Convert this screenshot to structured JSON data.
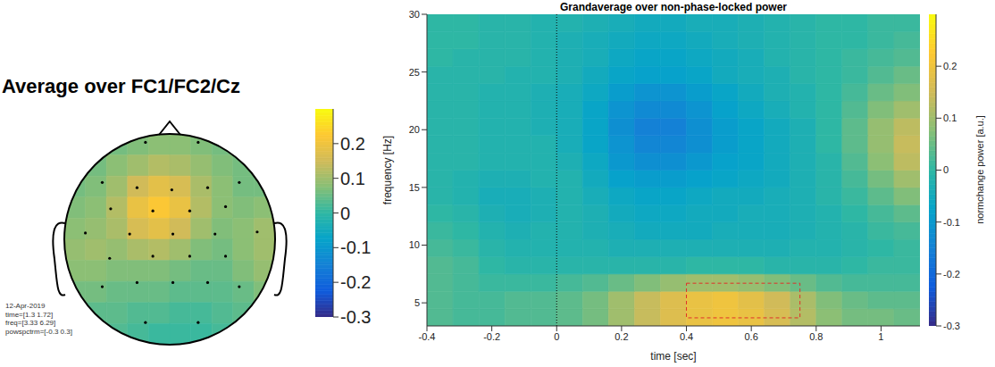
{
  "chart_data": [
    {
      "type": "topoplot",
      "title": "Average over FC1/FC2/Cz",
      "annotations": [
        "12-Apr-2019",
        "time=[1.3 1.72]",
        "freq=[3.33 6.29]",
        "powspctrm=[-0.3 0.3]"
      ],
      "tick_labels": false,
      "xlim": [
        -1,
        1
      ],
      "ylim": [
        -1,
        1
      ],
      "x": [
        -0.9,
        -0.7,
        -0.5,
        -0.3,
        -0.1,
        0.1,
        0.3,
        0.5,
        0.7,
        0.9
      ],
      "y": [
        0.9,
        0.7,
        0.5,
        0.3,
        0.1,
        -0.1,
        -0.3,
        -0.5,
        -0.7,
        -0.9
      ],
      "cells": [
        [
          0.05,
          0.05,
          0.06,
          0.07,
          0.08,
          0.08,
          0.07,
          0.06,
          0.05,
          0.05
        ],
        [
          0.05,
          0.06,
          0.08,
          0.1,
          0.12,
          0.11,
          0.09,
          0.07,
          0.06,
          0.05
        ],
        [
          0.06,
          0.07,
          0.1,
          0.15,
          0.18,
          0.16,
          0.11,
          0.08,
          0.06,
          0.06
        ],
        [
          0.07,
          0.08,
          0.12,
          0.19,
          0.22,
          0.19,
          0.12,
          0.08,
          0.07,
          0.08
        ],
        [
          0.08,
          0.09,
          0.11,
          0.16,
          0.18,
          0.15,
          0.1,
          0.07,
          0.08,
          0.1
        ],
        [
          0.09,
          0.1,
          0.09,
          0.11,
          0.12,
          0.1,
          0.07,
          0.06,
          0.08,
          0.1
        ],
        [
          0.08,
          0.08,
          0.07,
          0.07,
          0.07,
          0.06,
          0.05,
          0.05,
          0.07,
          0.09
        ],
        [
          0.06,
          0.06,
          0.05,
          0.05,
          0.05,
          0.04,
          0.04,
          0.04,
          0.05,
          0.07
        ],
        [
          0.05,
          0.04,
          0.04,
          0.03,
          0.03,
          0.02,
          0.02,
          0.03,
          0.04,
          0.05
        ],
        [
          0.04,
          0.03,
          0.03,
          0.02,
          0.01,
          0.01,
          0.01,
          0.02,
          0.03,
          0.04
        ]
      ],
      "electrodes": {
        "x": [
          -0.23,
          0.27,
          -0.64,
          -0.31,
          0.02,
          0.36,
          0.66,
          -0.56,
          -0.16,
          0.19,
          0.53,
          -0.8,
          -0.38,
          0.03,
          0.43,
          0.83,
          -0.57,
          -0.16,
          0.19,
          0.53,
          -0.64,
          -0.31,
          0.03,
          0.36,
          0.66,
          -0.23,
          0.27
        ],
        "y": [
          0.92,
          0.92,
          0.54,
          0.49,
          0.47,
          0.49,
          0.54,
          0.29,
          0.27,
          0.27,
          0.31,
          0.06,
          0.05,
          0.05,
          0.05,
          0.07,
          -0.18,
          -0.16,
          -0.16,
          -0.16,
          -0.45,
          -0.41,
          -0.41,
          -0.41,
          -0.45,
          -0.79,
          -0.79
        ]
      },
      "colorbar": {
        "lim": [
          -0.3,
          0.3
        ],
        "ticks": [
          0.2,
          0.1,
          0,
          -0.1,
          -0.2,
          -0.3
        ]
      }
    },
    {
      "type": "heatmap",
      "title": "Grandaverage over non-phase-locked power",
      "xlabel": "time [sec]",
      "ylabel": "frequency [Hz]",
      "xlim": [
        -0.4,
        1.12
      ],
      "xticks": [
        -0.4,
        -0.2,
        0,
        0.2,
        0.4,
        0.6,
        0.8,
        1
      ],
      "ylim": [
        3,
        30
      ],
      "yticks": [
        5,
        10,
        15,
        20,
        25,
        30
      ],
      "x": [
        -0.36,
        -0.28,
        -0.2,
        -0.12,
        -0.04,
        0.04,
        0.12,
        0.2,
        0.28,
        0.36,
        0.44,
        0.52,
        0.6,
        0.68,
        0.76,
        0.84,
        0.92,
        1.0,
        1.08
      ],
      "y": [
        3.75,
        5.25,
        6.75,
        8.25,
        9.75,
        11.25,
        12.75,
        14.25,
        15.75,
        17.25,
        18.75,
        20.25,
        21.75,
        23.25,
        24.75,
        26.25,
        27.75,
        29.25
      ],
      "cells": [
        [
          0.03,
          0.02,
          0.02,
          0.03,
          0.03,
          0.04,
          0.06,
          0.1,
          0.14,
          0.17,
          0.19,
          0.2,
          0.19,
          0.16,
          0.12,
          0.08,
          0.06,
          0.06,
          0.05
        ],
        [
          0.03,
          0.02,
          0.02,
          0.03,
          0.03,
          0.04,
          0.06,
          0.1,
          0.14,
          0.17,
          0.19,
          0.2,
          0.18,
          0.15,
          0.11,
          0.07,
          0.05,
          0.04,
          0.04
        ],
        [
          0.03,
          0.02,
          0.01,
          0.01,
          0.01,
          0.02,
          0.03,
          0.05,
          0.07,
          0.09,
          0.1,
          0.1,
          0.09,
          0.07,
          0.05,
          0.03,
          0.02,
          0.02,
          0.02
        ],
        [
          0.03,
          0.02,
          0.0,
          -0.01,
          -0.01,
          -0.01,
          -0.01,
          -0.01,
          -0.01,
          -0.01,
          0.0,
          0.0,
          0.0,
          -0.01,
          -0.01,
          -0.01,
          0.0,
          0.01,
          0.01
        ],
        [
          0.02,
          0.01,
          -0.01,
          -0.02,
          -0.02,
          -0.02,
          -0.02,
          -0.03,
          -0.03,
          -0.03,
          -0.03,
          -0.03,
          -0.03,
          -0.03,
          -0.02,
          -0.02,
          -0.01,
          0.0,
          0.01
        ],
        [
          0.01,
          0.0,
          -0.02,
          -0.03,
          -0.02,
          -0.02,
          -0.03,
          -0.04,
          -0.05,
          -0.05,
          -0.05,
          -0.04,
          -0.04,
          -0.04,
          -0.03,
          -0.02,
          -0.01,
          0.01,
          0.02
        ],
        [
          0.0,
          -0.01,
          -0.03,
          -0.04,
          -0.03,
          -0.02,
          -0.03,
          -0.05,
          -0.06,
          -0.06,
          -0.05,
          -0.05,
          -0.04,
          -0.04,
          -0.03,
          -0.02,
          0.0,
          0.02,
          0.04
        ],
        [
          -0.01,
          -0.02,
          -0.04,
          -0.04,
          -0.03,
          -0.02,
          -0.04,
          -0.06,
          -0.07,
          -0.07,
          -0.06,
          -0.05,
          -0.05,
          -0.04,
          -0.03,
          -0.01,
          0.01,
          0.04,
          0.07
        ],
        [
          -0.01,
          -0.02,
          -0.03,
          -0.03,
          -0.02,
          -0.02,
          -0.05,
          -0.08,
          -0.09,
          -0.09,
          -0.08,
          -0.07,
          -0.06,
          -0.05,
          -0.03,
          -0.01,
          0.02,
          0.06,
          0.1
        ],
        [
          -0.01,
          -0.01,
          -0.02,
          -0.02,
          -0.02,
          -0.03,
          -0.06,
          -0.1,
          -0.12,
          -0.12,
          -0.1,
          -0.08,
          -0.07,
          -0.05,
          -0.03,
          -0.01,
          0.03,
          0.08,
          0.13
        ],
        [
          -0.01,
          -0.01,
          -0.02,
          -0.02,
          -0.02,
          -0.04,
          -0.07,
          -0.11,
          -0.14,
          -0.14,
          -0.12,
          -0.09,
          -0.07,
          -0.05,
          -0.03,
          0.0,
          0.04,
          0.09,
          0.14
        ],
        [
          -0.01,
          -0.01,
          -0.02,
          -0.02,
          -0.03,
          -0.04,
          -0.07,
          -0.12,
          -0.15,
          -0.15,
          -0.12,
          -0.09,
          -0.07,
          -0.05,
          -0.03,
          0.0,
          0.04,
          0.09,
          0.13
        ],
        [
          -0.01,
          -0.01,
          -0.02,
          -0.02,
          -0.03,
          -0.04,
          -0.07,
          -0.11,
          -0.13,
          -0.13,
          -0.11,
          -0.08,
          -0.06,
          -0.04,
          -0.02,
          0.0,
          0.03,
          0.07,
          0.1
        ],
        [
          -0.01,
          -0.01,
          -0.02,
          -0.02,
          -0.03,
          -0.04,
          -0.06,
          -0.09,
          -0.11,
          -0.11,
          -0.09,
          -0.07,
          -0.05,
          -0.03,
          -0.02,
          0.0,
          0.02,
          0.05,
          0.07
        ],
        [
          -0.01,
          -0.01,
          -0.01,
          -0.02,
          -0.02,
          -0.03,
          -0.05,
          -0.07,
          -0.08,
          -0.08,
          -0.07,
          -0.05,
          -0.04,
          -0.03,
          -0.01,
          0.0,
          0.01,
          0.03,
          0.05
        ],
        [
          0.0,
          -0.01,
          -0.01,
          -0.01,
          -0.02,
          -0.03,
          -0.04,
          -0.06,
          -0.07,
          -0.07,
          -0.06,
          -0.05,
          -0.04,
          -0.02,
          -0.01,
          0.0,
          0.01,
          0.02,
          0.03
        ],
        [
          0.0,
          0.0,
          -0.01,
          -0.01,
          -0.02,
          -0.03,
          -0.04,
          -0.05,
          -0.06,
          -0.06,
          -0.05,
          -0.04,
          -0.03,
          -0.02,
          -0.01,
          0.0,
          0.0,
          0.01,
          0.02
        ],
        [
          0.0,
          0.0,
          -0.01,
          -0.01,
          -0.02,
          -0.02,
          -0.03,
          -0.04,
          -0.05,
          -0.05,
          -0.04,
          -0.04,
          -0.03,
          -0.02,
          -0.01,
          0.0,
          0.0,
          0.01,
          0.01
        ]
      ],
      "colorbar": {
        "label": "normchange power [a.u.]",
        "lim": [
          -0.3,
          0.3
        ],
        "ticks": [
          0.2,
          0.1,
          0,
          -0.1,
          -0.2,
          -0.3
        ]
      },
      "annotations": [
        {
          "type": "vline",
          "x": 0,
          "line_style": "dotted"
        },
        {
          "type": "rect",
          "x": [
            0.4,
            0.75
          ],
          "y": [
            3.7,
            6.7
          ],
          "color": "#e0302a",
          "line_style": "dashed"
        }
      ]
    }
  ]
}
